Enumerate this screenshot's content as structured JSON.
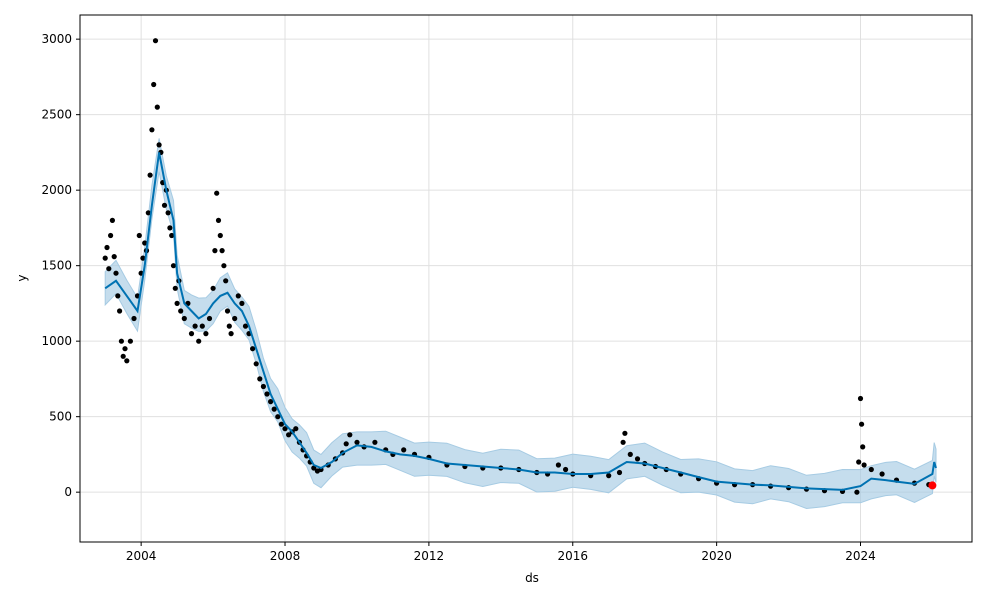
{
  "chart_data": {
    "type": "line",
    "title": "",
    "xlabel": "ds",
    "ylabel": "y",
    "x_range": [
      2002.3,
      2027.1
    ],
    "ylim": [
      -330,
      3160
    ],
    "grid": true,
    "x_ticks": [
      2004,
      2008,
      2012,
      2016,
      2020,
      2024
    ],
    "y_ticks": [
      0,
      500,
      1000,
      1500,
      2000,
      2500,
      3000
    ],
    "colors": {
      "observed": "#000000",
      "forecast": "#0072b2",
      "interval": "#a6cbe3",
      "highlight": "#ff0000",
      "grid": "#e0e0e0"
    },
    "series": [
      {
        "role": "observed",
        "marker": "dot",
        "points": [
          [
            2003.0,
            1550
          ],
          [
            2003.05,
            1620
          ],
          [
            2003.1,
            1480
          ],
          [
            2003.15,
            1700
          ],
          [
            2003.2,
            1800
          ],
          [
            2003.25,
            1560
          ],
          [
            2003.3,
            1450
          ],
          [
            2003.35,
            1300
          ],
          [
            2003.4,
            1200
          ],
          [
            2003.45,
            1000
          ],
          [
            2003.5,
            900
          ],
          [
            2003.55,
            950
          ],
          [
            2003.6,
            870
          ],
          [
            2003.7,
            1000
          ],
          [
            2003.8,
            1150
          ],
          [
            2003.9,
            1300
          ],
          [
            2003.95,
            1700
          ],
          [
            2004.0,
            1450
          ],
          [
            2004.05,
            1550
          ],
          [
            2004.1,
            1650
          ],
          [
            2004.15,
            1600
          ],
          [
            2004.2,
            1850
          ],
          [
            2004.25,
            2100
          ],
          [
            2004.3,
            2400
          ],
          [
            2004.35,
            2700
          ],
          [
            2004.4,
            2990
          ],
          [
            2004.45,
            2550
          ],
          [
            2004.5,
            2300
          ],
          [
            2004.55,
            2250
          ],
          [
            2004.6,
            2050
          ],
          [
            2004.65,
            1900
          ],
          [
            2004.7,
            2000
          ],
          [
            2004.75,
            1850
          ],
          [
            2004.8,
            1750
          ],
          [
            2004.85,
            1700
          ],
          [
            2004.9,
            1500
          ],
          [
            2004.95,
            1350
          ],
          [
            2005.0,
            1250
          ],
          [
            2005.05,
            1400
          ],
          [
            2005.1,
            1200
          ],
          [
            2005.2,
            1150
          ],
          [
            2005.3,
            1250
          ],
          [
            2005.4,
            1050
          ],
          [
            2005.5,
            1100
          ],
          [
            2005.6,
            1000
          ],
          [
            2005.7,
            1100
          ],
          [
            2005.8,
            1050
          ],
          [
            2005.9,
            1150
          ],
          [
            2006.0,
            1350
          ],
          [
            2006.05,
            1600
          ],
          [
            2006.1,
            1980
          ],
          [
            2006.15,
            1800
          ],
          [
            2006.2,
            1700
          ],
          [
            2006.25,
            1600
          ],
          [
            2006.3,
            1500
          ],
          [
            2006.35,
            1400
          ],
          [
            2006.4,
            1200
          ],
          [
            2006.45,
            1100
          ],
          [
            2006.5,
            1050
          ],
          [
            2006.6,
            1150
          ],
          [
            2006.7,
            1300
          ],
          [
            2006.8,
            1250
          ],
          [
            2006.9,
            1100
          ],
          [
            2007.0,
            1050
          ],
          [
            2007.1,
            950
          ],
          [
            2007.2,
            850
          ],
          [
            2007.3,
            750
          ],
          [
            2007.4,
            700
          ],
          [
            2007.5,
            650
          ],
          [
            2007.6,
            600
          ],
          [
            2007.7,
            550
          ],
          [
            2007.8,
            500
          ],
          [
            2007.9,
            450
          ],
          [
            2008.0,
            420
          ],
          [
            2008.1,
            380
          ],
          [
            2008.2,
            400
          ],
          [
            2008.3,
            420
          ],
          [
            2008.4,
            330
          ],
          [
            2008.5,
            280
          ],
          [
            2008.6,
            240
          ],
          [
            2008.7,
            200
          ],
          [
            2008.8,
            160
          ],
          [
            2008.9,
            140
          ],
          [
            2009.0,
            150
          ],
          [
            2009.2,
            180
          ],
          [
            2009.4,
            220
          ],
          [
            2009.6,
            260
          ],
          [
            2009.7,
            320
          ],
          [
            2009.8,
            380
          ],
          [
            2010.0,
            330
          ],
          [
            2010.2,
            300
          ],
          [
            2010.5,
            330
          ],
          [
            2010.8,
            280
          ],
          [
            2011.0,
            250
          ],
          [
            2011.3,
            280
          ],
          [
            2011.6,
            250
          ],
          [
            2012.0,
            230
          ],
          [
            2012.5,
            180
          ],
          [
            2013.0,
            170
          ],
          [
            2013.5,
            160
          ],
          [
            2014.0,
            160
          ],
          [
            2014.5,
            150
          ],
          [
            2015.0,
            130
          ],
          [
            2015.3,
            120
          ],
          [
            2015.6,
            180
          ],
          [
            2015.8,
            150
          ],
          [
            2016.0,
            120
          ],
          [
            2016.5,
            110
          ],
          [
            2017.0,
            110
          ],
          [
            2017.3,
            130
          ],
          [
            2017.4,
            330
          ],
          [
            2017.45,
            390
          ],
          [
            2017.6,
            250
          ],
          [
            2017.8,
            220
          ],
          [
            2018.0,
            190
          ],
          [
            2018.3,
            170
          ],
          [
            2018.6,
            150
          ],
          [
            2019.0,
            120
          ],
          [
            2019.5,
            90
          ],
          [
            2020.0,
            60
          ],
          [
            2020.5,
            50
          ],
          [
            2021.0,
            50
          ],
          [
            2021.5,
            40
          ],
          [
            2022.0,
            30
          ],
          [
            2022.5,
            20
          ],
          [
            2023.0,
            10
          ],
          [
            2023.5,
            5
          ],
          [
            2023.9,
            0
          ],
          [
            2023.95,
            200
          ],
          [
            2024.0,
            620
          ],
          [
            2024.03,
            450
          ],
          [
            2024.06,
            300
          ],
          [
            2024.1,
            180
          ],
          [
            2024.3,
            150
          ],
          [
            2024.6,
            120
          ],
          [
            2025.0,
            80
          ],
          [
            2025.5,
            60
          ],
          [
            2025.9,
            50
          ]
        ]
      },
      {
        "role": "forecast",
        "marker": "line",
        "points": [
          [
            2003.0,
            1350
          ],
          [
            2003.3,
            1400
          ],
          [
            2003.6,
            1300
          ],
          [
            2003.9,
            1200
          ],
          [
            2004.1,
            1500
          ],
          [
            2004.3,
            1900
          ],
          [
            2004.5,
            2250
          ],
          [
            2004.7,
            2000
          ],
          [
            2004.9,
            1800
          ],
          [
            2005.0,
            1450
          ],
          [
            2005.2,
            1250
          ],
          [
            2005.4,
            1200
          ],
          [
            2005.6,
            1150
          ],
          [
            2005.8,
            1180
          ],
          [
            2006.0,
            1250
          ],
          [
            2006.2,
            1300
          ],
          [
            2006.4,
            1320
          ],
          [
            2006.6,
            1250
          ],
          [
            2006.8,
            1200
          ],
          [
            2007.0,
            1100
          ],
          [
            2007.2,
            950
          ],
          [
            2007.4,
            800
          ],
          [
            2007.6,
            650
          ],
          [
            2007.8,
            550
          ],
          [
            2008.0,
            450
          ],
          [
            2008.2,
            400
          ],
          [
            2008.4,
            330
          ],
          [
            2008.6,
            260
          ],
          [
            2008.8,
            180
          ],
          [
            2009.0,
            160
          ],
          [
            2009.3,
            200
          ],
          [
            2009.6,
            260
          ],
          [
            2010.0,
            310
          ],
          [
            2010.4,
            300
          ],
          [
            2010.8,
            270
          ],
          [
            2011.2,
            250
          ],
          [
            2011.6,
            240
          ],
          [
            2012.0,
            220
          ],
          [
            2012.5,
            190
          ],
          [
            2013.0,
            180
          ],
          [
            2013.5,
            170
          ],
          [
            2014.0,
            160
          ],
          [
            2014.5,
            150
          ],
          [
            2015.0,
            130
          ],
          [
            2015.5,
            130
          ],
          [
            2016.0,
            120
          ],
          [
            2016.5,
            120
          ],
          [
            2017.0,
            130
          ],
          [
            2017.5,
            200
          ],
          [
            2018.0,
            190
          ],
          [
            2018.5,
            160
          ],
          [
            2019.0,
            130
          ],
          [
            2019.5,
            100
          ],
          [
            2020.0,
            70
          ],
          [
            2020.5,
            60
          ],
          [
            2021.0,
            50
          ],
          [
            2021.5,
            45
          ],
          [
            2022.0,
            35
          ],
          [
            2022.5,
            25
          ],
          [
            2023.0,
            20
          ],
          [
            2023.5,
            15
          ],
          [
            2024.0,
            40
          ],
          [
            2024.3,
            90
          ],
          [
            2024.7,
            80
          ],
          [
            2025.0,
            70
          ],
          [
            2025.5,
            55
          ],
          [
            2026.0,
            120
          ],
          [
            2026.05,
            200
          ],
          [
            2026.1,
            160
          ]
        ],
        "interval_width": 110
      },
      {
        "role": "highlight",
        "marker": "dot",
        "points": [
          [
            2026.0,
            45
          ]
        ]
      }
    ]
  }
}
